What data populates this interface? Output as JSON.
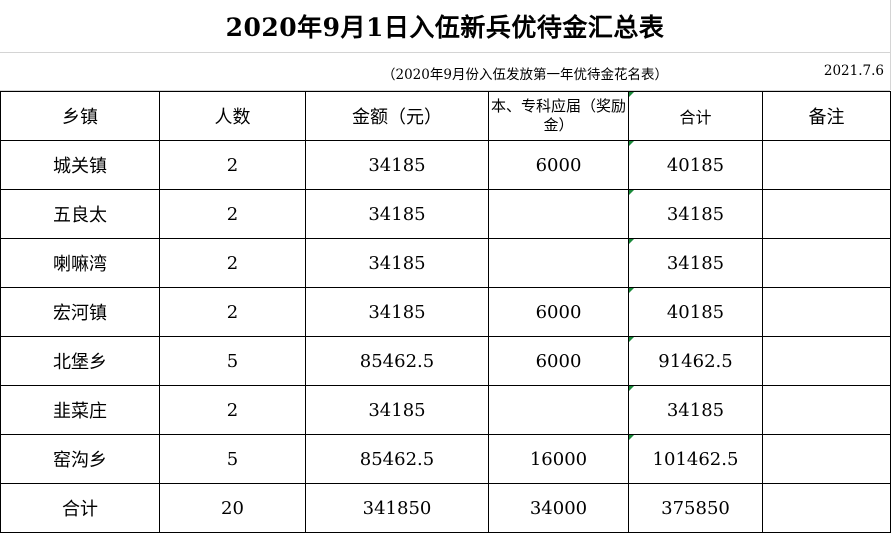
{
  "title": "2020年9月1日入伍新兵优待金汇总表",
  "subtitle": "（2020年9月份入伍发放第一年优待金花名表）",
  "date": "2021.7.6",
  "table": {
    "headers": [
      "乡镇",
      "人数",
      "金额（元）",
      "本、专科应届（奖励金）",
      "合计",
      "备注"
    ],
    "rows": [
      [
        "城关镇",
        "2",
        "34185",
        "6000",
        "40185",
        ""
      ],
      [
        "五良太",
        "2",
        "34185",
        "",
        "34185",
        ""
      ],
      [
        "喇嘛湾",
        "2",
        "34185",
        "",
        "34185",
        ""
      ],
      [
        "宏河镇",
        "2",
        "34185",
        "6000",
        "40185",
        ""
      ],
      [
        "北堡乡",
        "5",
        "85462.5",
        "6000",
        "91462.5",
        ""
      ],
      [
        "韭菜庄",
        "2",
        "34185",
        "",
        "34185",
        ""
      ],
      [
        "窑沟乡",
        "5",
        "85462.5",
        "16000",
        "101462.5",
        ""
      ],
      [
        "合计",
        "20",
        "341850",
        "34000",
        "375850",
        ""
      ]
    ]
  }
}
